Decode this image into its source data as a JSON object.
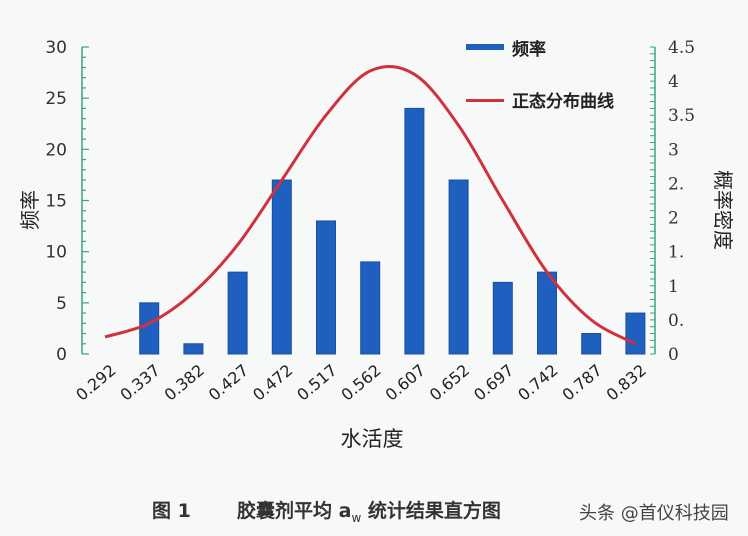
{
  "chart_data": {
    "type": "bar",
    "title": "",
    "xlabel": "水活度",
    "ylabel": "频率",
    "y2label": "概率密度",
    "categories": [
      "0.292",
      "0.337",
      "0.382",
      "0.427",
      "0.472",
      "0.517",
      "0.562",
      "0.607",
      "0.652",
      "0.697",
      "0.742",
      "0.787",
      "0.832"
    ],
    "series": [
      {
        "name": "频率",
        "type": "bar",
        "axis": "left",
        "color": "#1f5fbf",
        "values": [
          0,
          5,
          1,
          8,
          17,
          13,
          9,
          24,
          17,
          7,
          8,
          2,
          4
        ]
      },
      {
        "name": "正态分布曲线",
        "type": "line",
        "axis": "right",
        "color": "#d0313a",
        "values": [
          0.25,
          0.45,
          0.9,
          1.6,
          2.55,
          3.5,
          4.15,
          4.1,
          3.35,
          2.25,
          1.2,
          0.5,
          0.15
        ]
      }
    ],
    "ylim": [
      0,
      30
    ],
    "yticks": [
      "0",
      "5",
      "10",
      "15",
      "20",
      "25",
      "30"
    ],
    "y2lim": [
      0,
      4.5
    ],
    "y2ticks": [
      "0",
      "0.",
      "1",
      "1.",
      "2",
      "2.",
      "3",
      "3.5",
      "4",
      "4.5"
    ],
    "legend_position": "top-right",
    "grid": false
  },
  "legend": {
    "items": [
      {
        "label": "频率",
        "color": "#1f5fbf"
      },
      {
        "label": "正态分布曲线",
        "color": "#d0313a"
      }
    ]
  },
  "caption": {
    "figure_label": "图 1",
    "title_prefix": "胶囊剂平均 a",
    "subscript": "w",
    "title_suffix": " 统计结果直方图",
    "watermark": "头条 @首仪科技园"
  }
}
